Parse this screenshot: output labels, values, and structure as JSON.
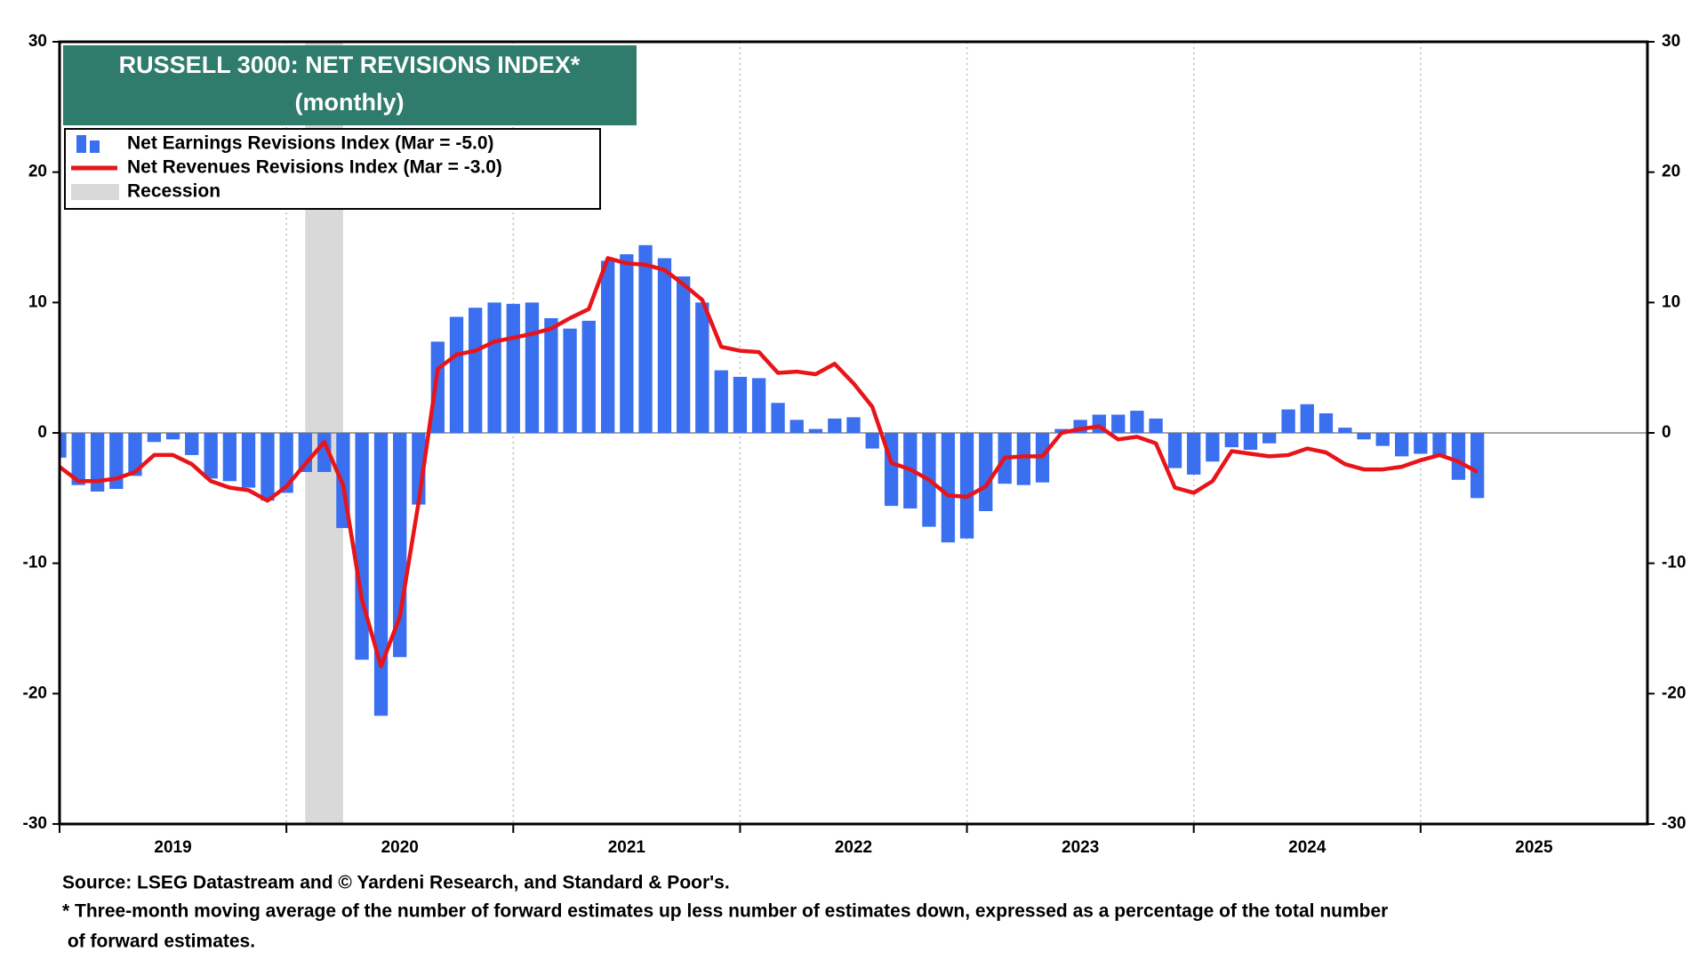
{
  "chart_data": {
    "type": "bar-line",
    "title": "RUSSELL 3000: NET REVISIONS INDEX*",
    "subtitle": "(monthly)",
    "x": [
      2019,
      2019.083,
      2019.167,
      2019.25,
      2019.333,
      2019.417,
      2019.5,
      2019.583,
      2019.667,
      2019.75,
      2019.833,
      2019.917,
      2020,
      2020.083,
      2020.167,
      2020.25,
      2020.333,
      2020.417,
      2020.5,
      2020.583,
      2020.667,
      2020.75,
      2020.833,
      2020.917,
      2021,
      2021.083,
      2021.167,
      2021.25,
      2021.333,
      2021.417,
      2021.5,
      2021.583,
      2021.667,
      2021.75,
      2021.833,
      2021.917,
      2022,
      2022.083,
      2022.167,
      2022.25,
      2022.333,
      2022.417,
      2022.5,
      2022.583,
      2022.667,
      2022.75,
      2022.833,
      2022.917,
      2023,
      2023.083,
      2023.167,
      2023.25,
      2023.333,
      2023.417,
      2023.5,
      2023.583,
      2023.667,
      2023.75,
      2023.833,
      2023.917,
      2024,
      2024.083,
      2024.167,
      2024.25,
      2024.333,
      2024.417,
      2024.5,
      2024.583,
      2024.667,
      2024.75,
      2024.833,
      2024.917,
      2025,
      2025.083,
      2025.167,
      2025.25
    ],
    "series": [
      {
        "name": "Net Earnings Revisions Index (Mar  = -5.0)",
        "kind": "bar",
        "color": "#3a6ff0",
        "values": [
          -1.9,
          -4.0,
          -4.5,
          -4.3,
          -3.3,
          -0.7,
          -0.5,
          -1.7,
          -3.5,
          -3.7,
          -4.2,
          -5.2,
          -4.6,
          -3.0,
          -3.0,
          -7.3,
          -17.4,
          -21.7,
          -17.2,
          -5.5,
          7.0,
          8.9,
          9.6,
          10.0,
          9.9,
          10.0,
          8.8,
          8.0,
          8.6,
          13.2,
          13.7,
          14.4,
          13.4,
          12.0,
          10.0,
          4.8,
          4.3,
          4.2,
          2.3,
          1.0,
          0.3,
          1.1,
          1.2,
          -1.2,
          -5.6,
          -5.8,
          -7.2,
          -8.4,
          -8.1,
          -6.0,
          -3.9,
          -4.0,
          -3.8,
          0.3,
          1.0,
          1.4,
          1.4,
          1.7,
          1.1,
          -2.7,
          -3.2,
          -2.2,
          -1.1,
          -1.3,
          -0.8,
          1.8,
          2.2,
          1.5,
          0.4,
          -0.5,
          -1.0,
          -1.8,
          -1.6,
          -1.7,
          -3.6,
          -5.0
        ]
      },
      {
        "name": "Net Revenues Revisions Index (Mar  = -3.0)",
        "kind": "line",
        "color": "#e8141a",
        "values": [
          -2.6,
          -3.7,
          -3.7,
          -3.5,
          -3.0,
          -1.7,
          -1.7,
          -2.4,
          -3.7,
          -4.2,
          -4.4,
          -5.2,
          -4.1,
          -2.4,
          -0.7,
          -4.0,
          -12.8,
          -17.9,
          -14.1,
          -5.3,
          4.9,
          6.0,
          6.3,
          7.0,
          7.3,
          7.6,
          8.0,
          8.8,
          9.5,
          13.4,
          13.0,
          12.9,
          12.5,
          11.4,
          10.2,
          6.6,
          6.3,
          6.2,
          4.6,
          4.7,
          4.5,
          5.3,
          3.8,
          2.0,
          -2.3,
          -2.8,
          -3.6,
          -4.8,
          -4.9,
          -4.1,
          -1.9,
          -1.8,
          -1.8,
          0.0,
          0.3,
          0.5,
          -0.5,
          -0.3,
          -0.8,
          -4.2,
          -4.6,
          -3.7,
          -1.4,
          -1.6,
          -1.8,
          -1.7,
          -1.2,
          -1.5,
          -2.4,
          -2.8,
          -2.8,
          -2.6,
          -2.1,
          -1.7,
          -2.2,
          -3.0
        ]
      }
    ],
    "recession": {
      "name": "Recession",
      "color": "#d9d9d9",
      "x": [
        2020.083,
        2020.25
      ]
    },
    "xlim": [
      2019,
      2026
    ],
    "xticks": [
      2019,
      2020,
      2021,
      2022,
      2023,
      2024,
      2025
    ],
    "ylim": [
      -30,
      30
    ],
    "yticks": [
      -30,
      -20,
      -10,
      0,
      10,
      20,
      30
    ],
    "y2lim": [
      -30,
      30
    ],
    "y2ticks": [
      -30,
      -20,
      -10,
      0,
      10,
      20,
      30
    ],
    "xgrid": true,
    "legend": "upper left",
    "source": "Source: LSEG Datastream and © Yardeni Research, and Standard & Poor's.",
    "note": [
      "* Three-month moving average of the number of forward estimates up less number of estimates down, expressed as a percentage of the total number",
      " of forward estimates."
    ]
  }
}
